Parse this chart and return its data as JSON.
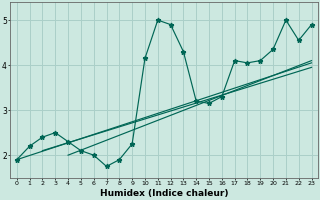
{
  "xlabel": "Humidex (Indice chaleur)",
  "x_values": [
    0,
    1,
    2,
    3,
    4,
    5,
    6,
    7,
    8,
    9,
    10,
    11,
    12,
    13,
    14,
    15,
    16,
    17,
    18,
    19,
    20,
    21,
    22,
    23
  ],
  "y_values": [
    1.9,
    2.2,
    2.4,
    2.5,
    2.3,
    2.1,
    2.0,
    1.75,
    1.9,
    2.25,
    4.15,
    5.0,
    4.9,
    4.3,
    3.2,
    3.15,
    3.3,
    4.1,
    4.05,
    4.1,
    4.35,
    5.0,
    4.55,
    4.9
  ],
  "bg_color": "#cce8e0",
  "line_color": "#006655",
  "grid_color": "#aacfc8",
  "ylim": [
    1.5,
    5.4
  ],
  "xlim": [
    -0.5,
    23.5
  ],
  "yticks": [
    2,
    3,
    4,
    5
  ],
  "xticks": [
    0,
    1,
    2,
    3,
    4,
    5,
    6,
    7,
    8,
    9,
    10,
    11,
    12,
    13,
    14,
    15,
    16,
    17,
    18,
    19,
    20,
    21,
    22,
    23
  ],
  "trend1_x": [
    0,
    23
  ],
  "trend1_y": [
    1.9,
    4.05
  ],
  "trend2_x": [
    2,
    23
  ],
  "trend2_y": [
    2.1,
    3.95
  ],
  "trend3_x": [
    4,
    23
  ],
  "trend3_y": [
    2.0,
    4.1
  ]
}
